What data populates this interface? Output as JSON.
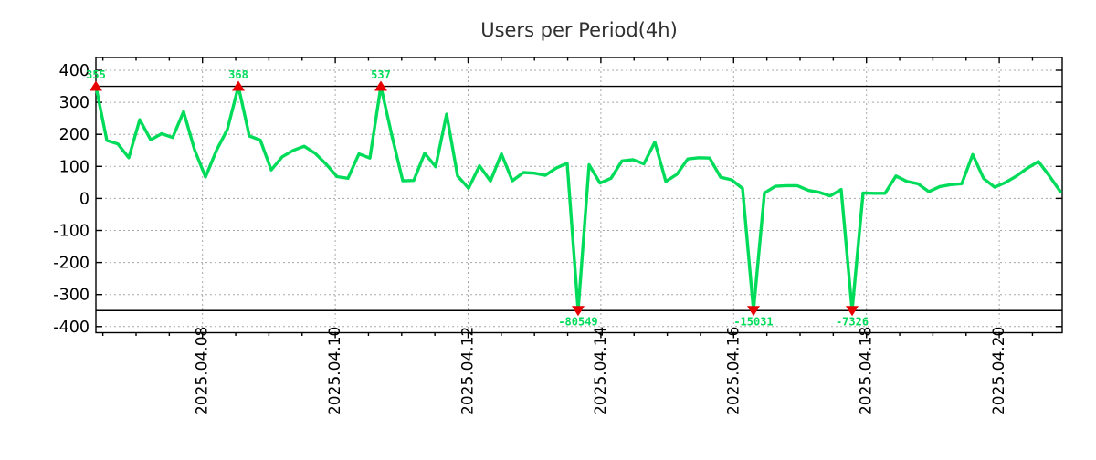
{
  "title": "Users per Period(4h)",
  "colors": {
    "line_green": "#00dc5a",
    "annotation_green": "#00dc5a",
    "marker_red": "#e60000",
    "grid_gray": "#a8a8a8",
    "axis_black": "#000000",
    "title_color": "#303030",
    "background": "#ffffff"
  },
  "chart_data": {
    "type": "line",
    "title": "Users per Period(4h)",
    "period": "4h",
    "grid": true,
    "legend": "none",
    "x_tick_labels": [
      "2025.04.08",
      "2025.04.10",
      "2025.04.12",
      "2025.04.14",
      "2025.04.16",
      "2025.04.18",
      "2025.04.20"
    ],
    "y_tick_values": [
      400,
      300,
      200,
      100,
      0,
      -100,
      -200,
      -300,
      -400
    ],
    "y_tick_labels": [
      "400",
      "300",
      "200",
      "100",
      "0",
      "-100",
      "-200",
      "-300",
      "-400"
    ],
    "y_clip_limits": [
      -350,
      350
    ],
    "ylim": [
      -420,
      440
    ],
    "values": [
      355,
      181,
      170,
      127,
      246,
      183,
      202,
      190,
      271,
      152,
      67,
      150,
      216,
      368,
      195,
      182,
      89,
      130,
      150,
      163,
      141,
      107,
      68,
      63,
      139,
      126,
      537,
      197,
      55,
      56,
      141,
      99,
      263,
      70,
      32,
      102,
      54,
      139,
      55,
      81,
      79,
      72,
      95,
      110,
      -80549,
      105,
      48,
      63,
      117,
      121,
      108,
      176,
      53,
      75,
      123,
      127,
      126,
      66,
      58,
      31,
      -15031,
      17,
      38,
      40,
      40,
      25,
      19,
      8,
      28,
      -7326,
      17,
      16,
      16,
      70,
      53,
      46,
      21,
      37,
      43,
      46,
      137,
      62,
      35,
      50,
      70,
      95,
      115,
      70,
      21
    ],
    "annotations": [
      {
        "index": 0,
        "label": "355",
        "value": 355,
        "direction": "up"
      },
      {
        "index": 13,
        "label": "368",
        "value": 368,
        "direction": "up"
      },
      {
        "index": 26,
        "label": "537",
        "value": 537,
        "direction": "up"
      },
      {
        "index": 44,
        "label": "-80549",
        "value": -80549,
        "direction": "down"
      },
      {
        "index": 60,
        "label": "-15031",
        "value": -15031,
        "direction": "down"
      },
      {
        "index": 69,
        "label": "-7326",
        "value": -7326,
        "direction": "down"
      }
    ]
  }
}
